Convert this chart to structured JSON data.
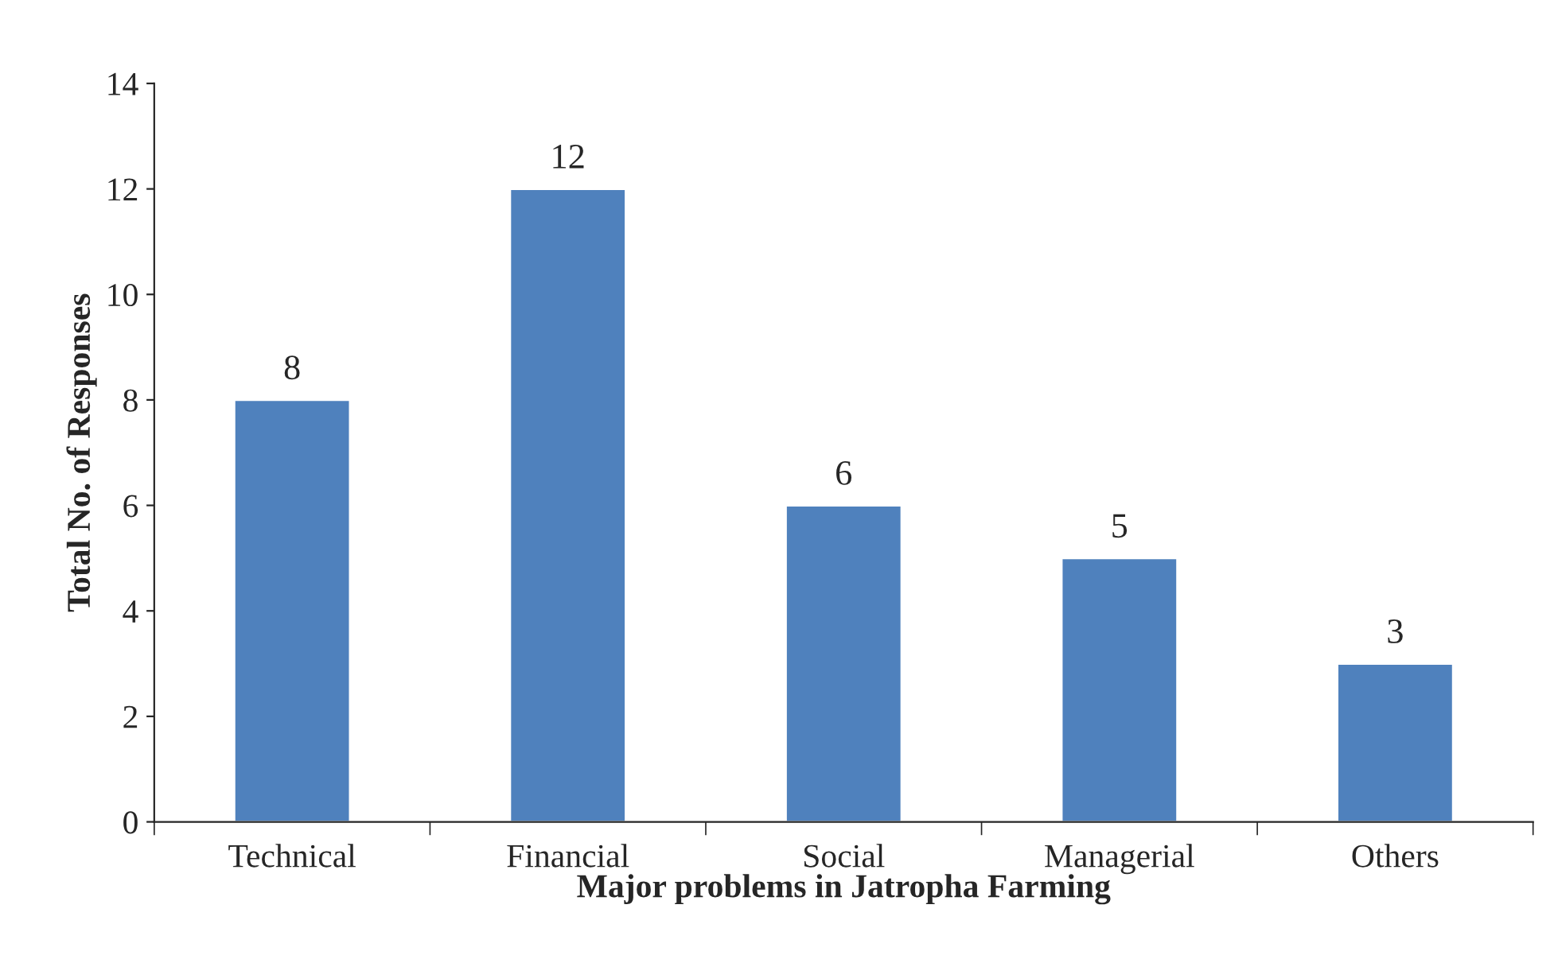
{
  "chart_data": {
    "type": "bar",
    "xlabel": "Major problems in Jatropha Farming",
    "ylabel": "Total No. of Responses",
    "categories": [
      "Technical",
      "Financial",
      "Social",
      "Managerial",
      "Others"
    ],
    "values": [
      8,
      12,
      6,
      5,
      3
    ],
    "color": "#4f81bd",
    "ylim": [
      0,
      14
    ],
    "yticks": [
      0,
      2,
      4,
      6,
      8,
      10,
      12,
      14
    ],
    "data_labels": true,
    "grid": false,
    "legend": false
  }
}
